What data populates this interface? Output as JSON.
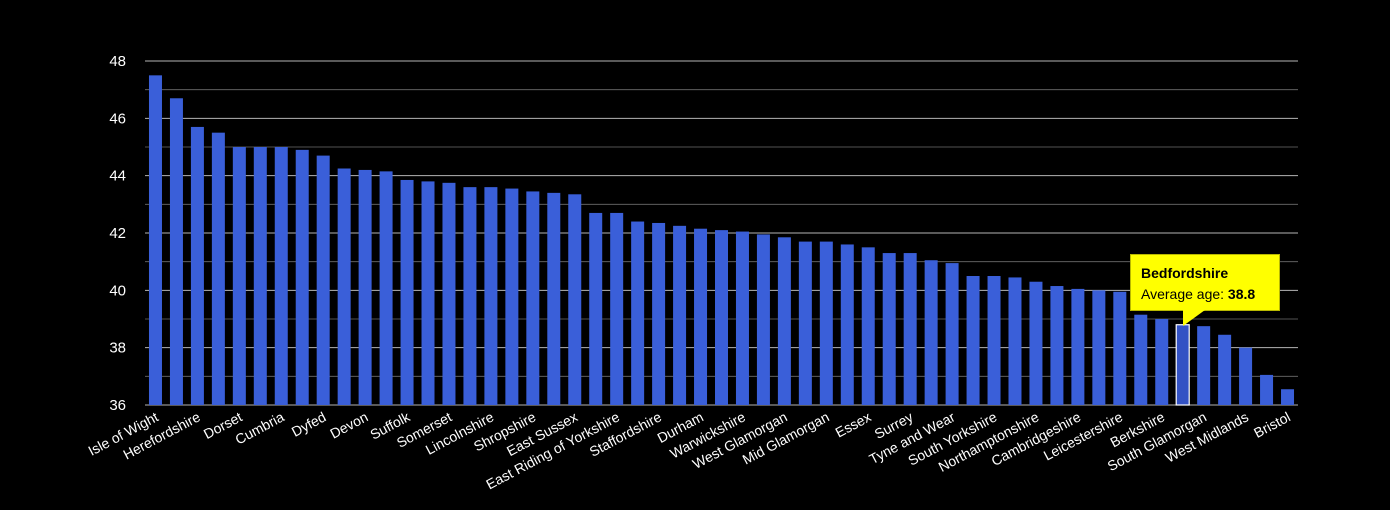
{
  "chart_data": {
    "type": "bar",
    "title": "",
    "xlabel": "",
    "ylabel": "",
    "ylim": [
      36,
      48
    ],
    "yticks": [
      36,
      38,
      40,
      42,
      44,
      46,
      48
    ],
    "grid": true,
    "colors": {
      "background": "#000000",
      "bar": "#3a5fd9",
      "grid": "#c8c8c8",
      "highlight_fill": "#3352c4",
      "highlight_outline": "#ffffff",
      "tooltip_bg": "#ffff00"
    },
    "categories": [
      "Isle of Wight",
      "",
      "Herefordshire",
      "",
      "Dorset",
      "",
      "Cumbria",
      "",
      "Dyfed",
      "",
      "Devon",
      "",
      "Suffolk",
      "",
      "Somerset",
      "",
      "Lincolnshire",
      "",
      "Shropshire",
      "",
      "East Sussex",
      "",
      "East Riding of Yorkshire",
      "",
      "Staffordshire",
      "",
      "Durham",
      "",
      "Warwickshire",
      "",
      "West Glamorgan",
      "",
      "Mid Glamorgan",
      "",
      "Essex",
      "",
      "Surrey",
      "",
      "Tyne and Wear",
      "",
      "South Yorkshire",
      "",
      "Northamptonshire",
      "",
      "Cambridgeshire",
      "",
      "Leicestershire",
      "",
      "Berkshire",
      "",
      "South Glamorgan",
      "",
      "West Midlands",
      "",
      "Bristol"
    ],
    "values": [
      47.5,
      46.7,
      45.7,
      45.5,
      45.0,
      45.0,
      45.0,
      44.9,
      44.7,
      44.25,
      44.2,
      44.15,
      43.85,
      43.8,
      43.75,
      43.6,
      43.6,
      43.55,
      43.45,
      43.4,
      43.35,
      42.7,
      42.7,
      42.4,
      42.35,
      42.25,
      42.15,
      42.1,
      42.05,
      41.95,
      41.85,
      41.7,
      41.7,
      41.6,
      41.5,
      41.3,
      41.3,
      41.05,
      40.95,
      40.5,
      40.5,
      40.45,
      40.3,
      40.15,
      40.05,
      40.0,
      39.95,
      39.15,
      39.0,
      38.8,
      38.75,
      38.45,
      38.0,
      37.05,
      36.55
    ],
    "highlight_index": 49,
    "tooltip": {
      "title": "Bedfordshire",
      "label": "Average age: ",
      "value": "38.8"
    }
  }
}
